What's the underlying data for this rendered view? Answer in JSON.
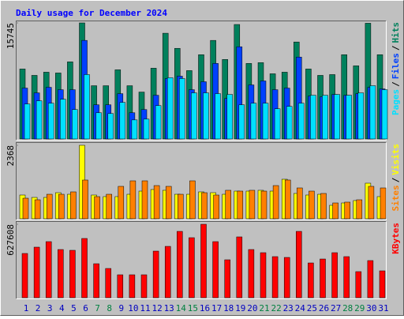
{
  "chart_data": [
    {
      "type": "bar",
      "title": "Daily usage for December 2024",
      "ylim": [
        0,
        15745
      ],
      "yticks": [
        15745
      ],
      "separator": "/",
      "series": [
        {
          "name": "Hits",
          "color": "#00805c",
          "values": [
            9490,
            8627,
            9059,
            8951,
            10461,
            15745,
            7225,
            7225,
            9382,
            7225,
            6363,
            9598,
            14343,
            12294,
            9274,
            11431,
            13372,
            10784,
            15529,
            10245,
            10353,
            8843,
            9059,
            13157,
            9490,
            8627,
            8735,
            11431,
            9922,
            15700,
            11431
          ]
        },
        {
          "name": "Files",
          "color": "#0040ff",
          "values": [
            6902,
            6255,
            7010,
            6686,
            6686,
            13372,
            4637,
            4637,
            6147,
            3559,
            3990,
            5931,
            8196,
            8519,
            6686,
            7764,
            10245,
            5500,
            12509,
            7333,
            7872,
            6686,
            6902,
            11107,
            5823,
            5716,
            6039,
            5931,
            6147,
            7010,
            6794
          ]
        },
        {
          "name": "Pages",
          "color": "#00e0ff",
          "values": [
            4745,
            5176,
            4853,
            5392,
            3990,
            8735,
            3559,
            3451,
            4961,
            2588,
            2696,
            4529,
            8304,
            8196,
            6255,
            6255,
            6147,
            6039,
            4637,
            4853,
            4853,
            4098,
            4421,
            4853,
            5931,
            5931,
            6039,
            5931,
            6255,
            7225,
            6686
          ]
        }
      ]
    },
    {
      "type": "bar",
      "ylim": [
        0,
        2368
      ],
      "yticks": [
        2368
      ],
      "separator": "/",
      "series": [
        {
          "name": "Visits",
          "color": "#ffff00",
          "values": [
            764,
            687,
            687,
            840,
            789,
            2368,
            764,
            713,
            713,
            789,
            891,
            942,
            917,
            789,
            789,
            866,
            840,
            789,
            891,
            891,
            917,
            891,
            1273,
            815,
            764,
            789,
            433,
            509,
            586,
            1146,
            713
          ]
        },
        {
          "name": "Sites",
          "color": "#ff8000",
          "values": [
            662,
            611,
            789,
            789,
            866,
            1248,
            713,
            789,
            1044,
            1222,
            1222,
            1069,
            1044,
            789,
            1222,
            840,
            764,
            917,
            891,
            917,
            891,
            1069,
            1248,
            993,
            891,
            815,
            509,
            535,
            611,
            1044,
            993
          ]
        }
      ]
    },
    {
      "type": "bar",
      "ylim": [
        0,
        627608
      ],
      "yticks": [
        627608
      ],
      "categories": [
        "1",
        "2",
        "3",
        "4",
        "5",
        "6",
        "7",
        "8",
        "9",
        "10",
        "11",
        "12",
        "13",
        "14",
        "15",
        "16",
        "17",
        "18",
        "19",
        "20",
        "21",
        "22",
        "23",
        "24",
        "25",
        "26",
        "27",
        "28",
        "29",
        "30",
        "31"
      ],
      "category_colors": [
        "#0000c0",
        "#0000c0",
        "#0000c0",
        "#0000c0",
        "#0000c0",
        "#0000c0",
        "#008040",
        "#008040",
        "#0000c0",
        "#0000c0",
        "#0000c0",
        "#0000c0",
        "#0000c0",
        "#008040",
        "#008040",
        "#0000c0",
        "#0000c0",
        "#0000c0",
        "#0000c0",
        "#0000c0",
        "#008040",
        "#008040",
        "#0000c0",
        "#0000c0",
        "#0000c0",
        "#0000c0",
        "#0000c0",
        "#008040",
        "#008040",
        "#0000c0",
        "#0000c0"
      ],
      "series": [
        {
          "name": "KBytes",
          "color": "#ff0000",
          "values": [
            377900,
            431900,
            479100,
            411600,
            404900,
            506100,
            290200,
            249700,
            195700,
            195700,
            195700,
            398100,
            438600,
            566800,
            512800,
            627608,
            479100,
            323900,
            519600,
            411600,
            384600,
            350900,
            344100,
            566800,
            296900,
            330600,
            384600,
            350900,
            222700,
            317200,
            229400
          ]
        }
      ]
    }
  ]
}
